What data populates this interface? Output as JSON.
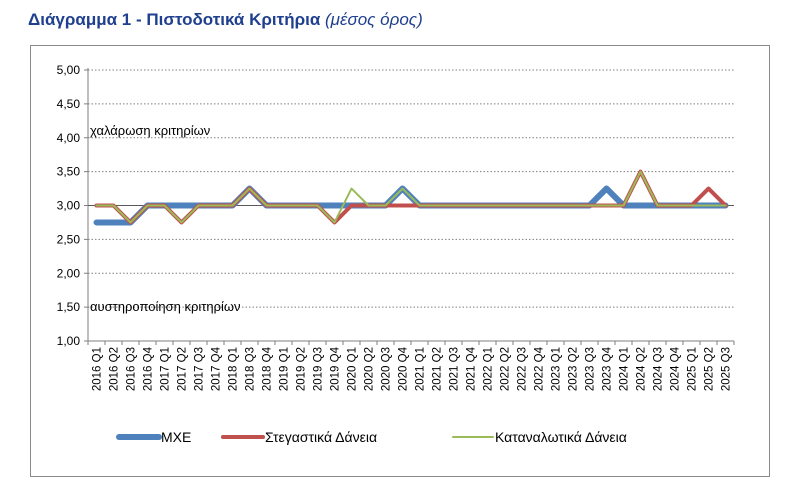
{
  "title": {
    "main": "Διάγραμμα 1 - Πιστοδοτικά Κριτήρια",
    "sub": "(μέσος όρος)"
  },
  "chart_data": {
    "type": "line",
    "categories": [
      "2016 Q1",
      "2016 Q2",
      "2016 Q3",
      "2016 Q4",
      "2017 Q1",
      "2017 Q2",
      "2017 Q3",
      "2017 Q4",
      "2018 Q1",
      "2018 Q3",
      "2018 Q4",
      "2019 Q1",
      "2019 Q2",
      "2019 Q3",
      "2019 Q4",
      "2020 Q1",
      "2020 Q2",
      "2020 Q3",
      "2020 Q4",
      "2021 Q1",
      "2021 Q2",
      "2021 Q3",
      "2021 Q4",
      "2022 Q1",
      "2022 Q2",
      "2022 Q3",
      "2022 Q4",
      "2023 Q1",
      "2023 Q2",
      "2023 Q3",
      "2023 Q4",
      "2024 Q1",
      "2024 Q2",
      "2024 Q3",
      "2024 Q4",
      "2025 Q1",
      "2025 Q2",
      "2025 Q3"
    ],
    "series": [
      {
        "name": "ΜΧΕ",
        "color": "#4f81bd",
        "width": 6,
        "values": [
          2.75,
          2.75,
          2.75,
          3.0,
          3.0,
          3.0,
          3.0,
          3.0,
          3.0,
          3.25,
          3.0,
          3.0,
          3.0,
          3.0,
          3.0,
          3.0,
          3.0,
          3.0,
          3.25,
          3.0,
          3.0,
          3.0,
          3.0,
          3.0,
          3.0,
          3.0,
          3.0,
          3.0,
          3.0,
          3.0,
          3.25,
          3.0,
          3.0,
          3.0,
          3.0,
          3.0,
          3.0,
          3.0
        ]
      },
      {
        "name": "Στεγαστικά Δάνεια",
        "color": "#c0504d",
        "width": 4,
        "values": [
          3.0,
          3.0,
          2.75,
          3.0,
          3.0,
          2.75,
          3.0,
          3.0,
          3.0,
          3.25,
          3.0,
          3.0,
          3.0,
          3.0,
          2.75,
          3.0,
          3.0,
          3.0,
          3.0,
          3.0,
          3.0,
          3.0,
          3.0,
          3.0,
          3.0,
          3.0,
          3.0,
          3.0,
          3.0,
          3.0,
          3.0,
          3.0,
          3.5,
          3.0,
          3.0,
          3.0,
          3.25,
          3.0
        ]
      },
      {
        "name": "Καταναλωτικά Δάνεια",
        "color": "#9bbb59",
        "width": 2,
        "values": [
          3.0,
          3.0,
          2.75,
          3.0,
          3.0,
          2.75,
          3.0,
          3.0,
          3.0,
          3.25,
          3.0,
          3.0,
          3.0,
          3.0,
          2.75,
          3.25,
          3.0,
          3.0,
          3.25,
          3.0,
          3.0,
          3.0,
          3.0,
          3.0,
          3.0,
          3.0,
          3.0,
          3.0,
          3.0,
          3.0,
          3.0,
          3.0,
          3.5,
          3.0,
          3.0,
          3.0,
          3.0,
          3.0
        ]
      }
    ],
    "ylim": [
      1.0,
      5.0
    ],
    "yticks": [
      "1,00",
      "1,50",
      "2,00",
      "2,50",
      "3,00",
      "3,50",
      "4,00",
      "4,50",
      "5,00"
    ],
    "ytick_values": [
      1.0,
      1.5,
      2.0,
      2.5,
      3.0,
      3.5,
      4.0,
      4.5,
      5.0
    ],
    "grid": true,
    "legend_position": "bottom",
    "annotations": [
      {
        "text": "χαλάρωση κριτηρίων",
        "y": 4.1
      },
      {
        "text": "αυστηροποίηση κριτηρίων",
        "y": 1.5
      }
    ]
  }
}
